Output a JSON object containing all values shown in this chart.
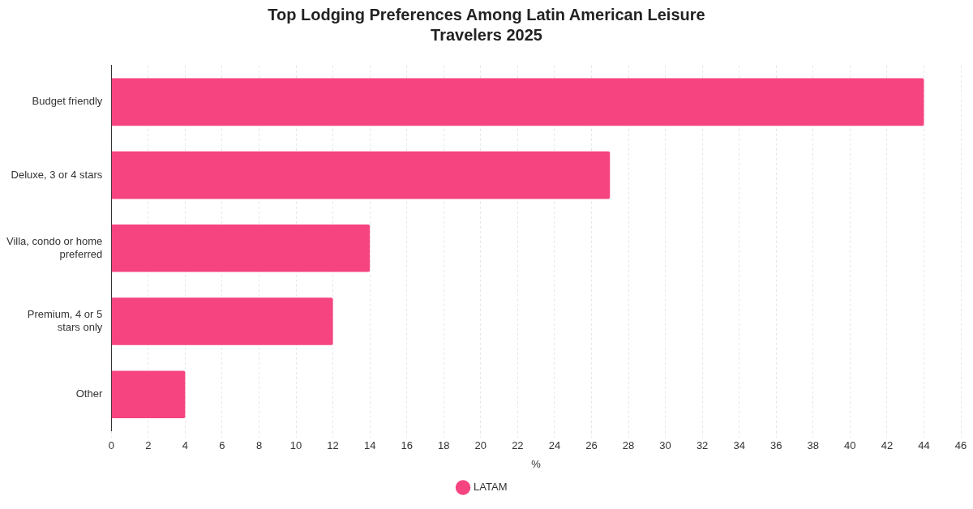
{
  "chart_data": {
    "type": "bar",
    "orientation": "horizontal",
    "title": "Top Lodging Preferences Among Latin American Leisure Travelers 2025",
    "xlabel": "%",
    "categories": [
      "Budget friendly",
      "Deluxe, 3 or 4 stars",
      "Villa, condo or home preferred",
      "Premium, 4 or 5 stars only",
      "Other"
    ],
    "series": [
      {
        "name": "LATAM",
        "color": "#f5447f",
        "values": [
          44,
          27,
          14,
          12,
          4
        ]
      }
    ],
    "xlim": [
      0,
      46
    ],
    "xticks": [
      0,
      2,
      4,
      6,
      8,
      10,
      12,
      14,
      16,
      18,
      20,
      22,
      24,
      26,
      28,
      30,
      32,
      34,
      36,
      38,
      40,
      42,
      44,
      46
    ],
    "grid": "x",
    "legend": "bottom"
  }
}
